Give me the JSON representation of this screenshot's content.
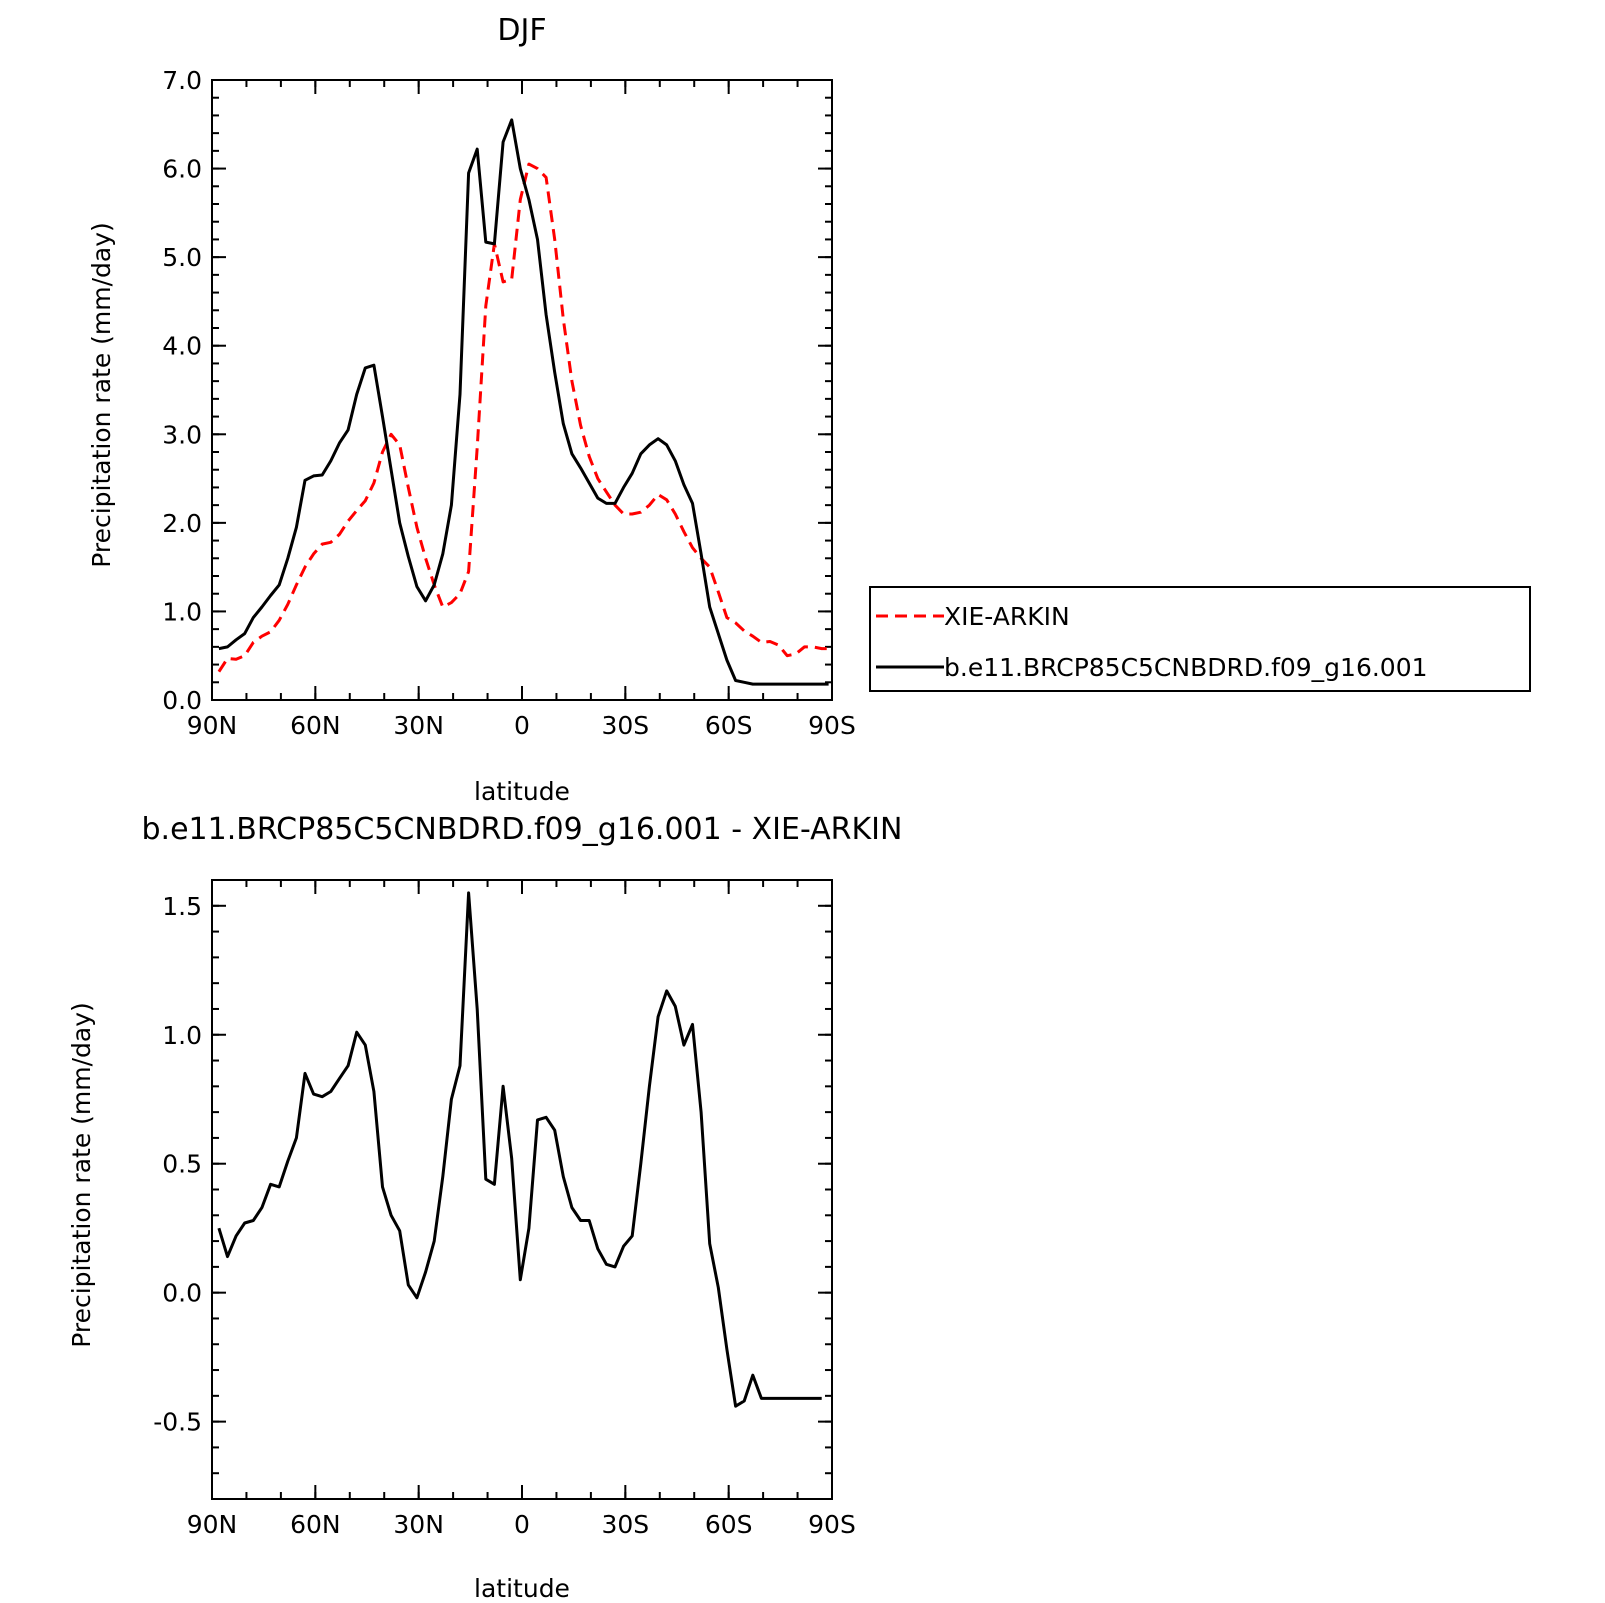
{
  "chart_data": [
    {
      "type": "line",
      "title": "DJF",
      "xlabel": "latitude",
      "ylabel": "Precipitation rate (mm/day)",
      "xlim": [
        90,
        -90
      ],
      "ylim": [
        0,
        7
      ],
      "x_tick_values": [
        90,
        60,
        30,
        0,
        -30,
        -60,
        -90
      ],
      "x_tick_labels": [
        "90N",
        "60N",
        "30N",
        "0",
        "30S",
        "60S",
        "90S"
      ],
      "y_tick_values": [
        0,
        1,
        2,
        3,
        4,
        5,
        6,
        7
      ],
      "y_tick_labels": [
        "0.0",
        "1.0",
        "2.0",
        "3.0",
        "4.0",
        "5.0",
        "6.0",
        "7.0"
      ],
      "legend": "right",
      "x": [
        88,
        85.5,
        83,
        80.5,
        78,
        75.5,
        73,
        70.5,
        68,
        65.5,
        63,
        60.5,
        58,
        55.5,
        53,
        50.5,
        48,
        45.5,
        43,
        40.5,
        38,
        35.5,
        33,
        30.5,
        28,
        25.5,
        23,
        20.5,
        18,
        15.5,
        13,
        10.5,
        8,
        5.5,
        3,
        0.5,
        -2,
        -4.5,
        -7,
        -9.5,
        -12,
        -14.5,
        -17,
        -19.5,
        -22,
        -24.5,
        -27,
        -29.5,
        -32,
        -34.5,
        -37,
        -39.5,
        -42,
        -44.5,
        -47,
        -49.5,
        -52,
        -54.5,
        -57,
        -59.5,
        -62,
        -64.5,
        -67,
        -69.5,
        -72,
        -74.5,
        -77,
        -79.5,
        -82,
        -84.5,
        -87,
        -89
      ],
      "series": [
        {
          "name": "XIE-ARKIN",
          "color": "#ff0000",
          "dash": "dashed",
          "values": [
            0.32,
            0.47,
            0.46,
            0.5,
            0.65,
            0.72,
            0.77,
            0.9,
            1.08,
            1.3,
            1.5,
            1.65,
            1.76,
            1.78,
            1.87,
            2.02,
            2.14,
            2.25,
            2.45,
            2.8,
            3.0,
            2.88,
            2.4,
            1.95,
            1.6,
            1.3,
            1.05,
            1.1,
            1.2,
            1.45,
            2.85,
            4.45,
            5.15,
            4.72,
            4.75,
            5.65,
            6.05,
            6.0,
            5.9,
            5.2,
            4.3,
            3.6,
            3.1,
            2.75,
            2.5,
            2.35,
            2.2,
            2.1,
            2.1,
            2.12,
            2.2,
            2.32,
            2.26,
            2.1,
            1.9,
            1.72,
            1.6,
            1.5,
            1.22,
            0.93,
            0.87,
            0.78,
            0.72,
            0.65,
            0.66,
            0.62,
            0.5,
            0.52,
            0.6,
            0.6,
            0.58,
            0.58
          ]
        },
        {
          "name": "b.e11.BRCP85C5CNBDRD.f09_g16.001",
          "color": "#000000",
          "dash": "solid",
          "values": [
            0.58,
            0.6,
            0.68,
            0.75,
            0.93,
            1.05,
            1.18,
            1.3,
            1.6,
            1.95,
            2.48,
            2.53,
            2.54,
            2.7,
            2.9,
            3.05,
            3.45,
            3.75,
            3.78,
            3.2,
            2.6,
            2.0,
            1.62,
            1.28,
            1.12,
            1.3,
            1.65,
            2.2,
            3.45,
            5.95,
            6.22,
            5.17,
            5.15,
            6.3,
            6.55,
            6.0,
            5.65,
            5.2,
            4.35,
            3.7,
            3.12,
            2.78,
            2.62,
            2.45,
            2.28,
            2.22,
            2.22,
            2.4,
            2.56,
            2.78,
            2.88,
            2.95,
            2.88,
            2.7,
            2.43,
            2.22,
            1.65,
            1.05,
            0.75,
            0.45,
            0.22,
            0.2,
            0.18,
            0.18,
            0.18,
            0.18,
            0.18,
            0.18,
            0.18,
            0.18,
            0.18,
            0.18
          ]
        }
      ]
    },
    {
      "type": "line",
      "title": "b.e11.BRCP85C5CNBDRD.f09_g16.001 - XIE-ARKIN",
      "xlabel": "latitude",
      "ylabel": "Precipitation rate (mm/day)",
      "xlim": [
        90,
        -90
      ],
      "ylim": [
        -0.8,
        1.6
      ],
      "x_tick_values": [
        90,
        60,
        30,
        0,
        -30,
        -60,
        -90
      ],
      "x_tick_labels": [
        "90N",
        "60N",
        "30N",
        "0",
        "30S",
        "60S",
        "90S"
      ],
      "y_tick_values": [
        -0.5,
        0,
        0.5,
        1.0,
        1.5
      ],
      "y_tick_labels": [
        "-0.5",
        "0.0",
        "0.5",
        "1.0",
        "1.5"
      ],
      "x": [
        88,
        85.5,
        83,
        80.5,
        78,
        75.5,
        73,
        70.5,
        68,
        65.5,
        63,
        60.5,
        58,
        55.5,
        53,
        50.5,
        48,
        45.5,
        43,
        40.5,
        38,
        35.5,
        33,
        30.5,
        28,
        25.5,
        23,
        20.5,
        18,
        15.5,
        13,
        10.5,
        8,
        5.5,
        3,
        0.5,
        -2,
        -4.5,
        -7,
        -9.5,
        -12,
        -14.5,
        -17,
        -19.5,
        -22,
        -24.5,
        -27,
        -29.5,
        -32,
        -34.5,
        -37,
        -39.5,
        -42,
        -44.5,
        -47,
        -49.5,
        -52,
        -54.5,
        -57,
        -59.5,
        -62,
        -64.5,
        -67,
        -69.5,
        -72,
        -74.5,
        -77,
        -79.5,
        -82,
        -84.5,
        -87
      ],
      "series": [
        {
          "color": "#000000",
          "dash": "solid",
          "values": [
            0.25,
            0.14,
            0.22,
            0.27,
            0.28,
            0.33,
            0.42,
            0.41,
            0.51,
            0.6,
            0.85,
            0.77,
            0.76,
            0.78,
            0.83,
            0.88,
            1.01,
            0.96,
            0.78,
            0.41,
            0.3,
            0.24,
            0.03,
            -0.02,
            0.08,
            0.2,
            0.45,
            0.75,
            0.88,
            1.55,
            1.1,
            0.44,
            0.42,
            0.8,
            0.52,
            0.05,
            0.25,
            0.67,
            0.68,
            0.63,
            0.45,
            0.33,
            0.28,
            0.28,
            0.17,
            0.11,
            0.1,
            0.18,
            0.22,
            0.5,
            0.8,
            1.07,
            1.17,
            1.11,
            0.96,
            1.04,
            0.7,
            0.19,
            0.02,
            -0.22,
            -0.44,
            -0.42,
            -0.32,
            -0.41,
            -0.41,
            -0.41,
            -0.41,
            -0.41,
            -0.41,
            -0.41,
            -0.41
          ]
        }
      ]
    }
  ]
}
